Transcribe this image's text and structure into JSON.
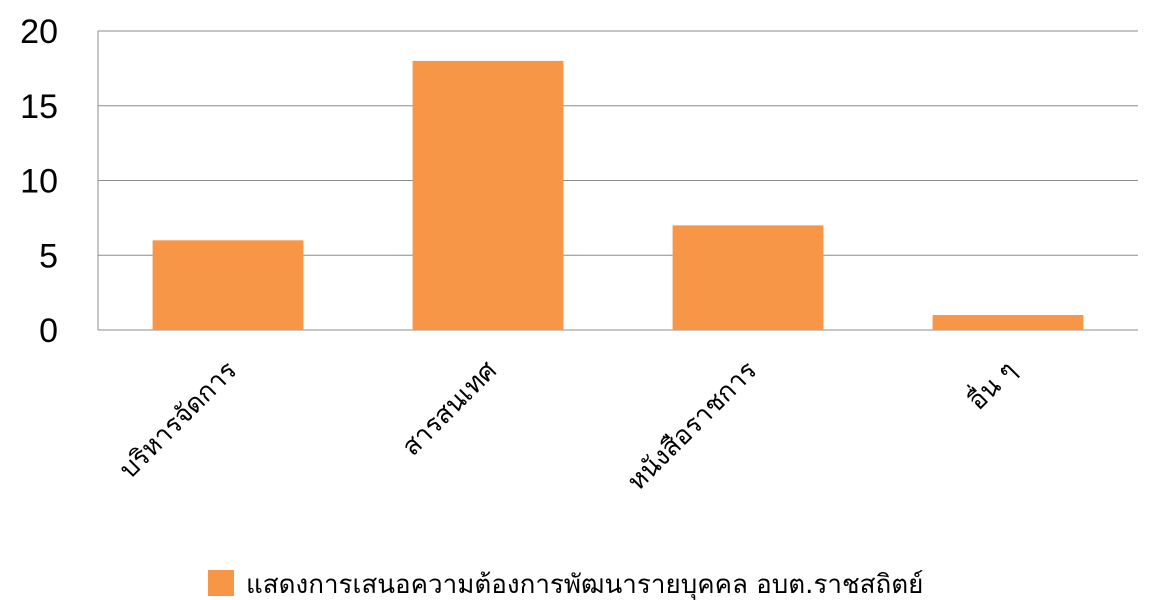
{
  "chart_data": {
    "type": "bar",
    "categories": [
      "บริหารจัดการ",
      "สารสนเทศ",
      "หนังสือราชการ",
      "อื่น ๆ"
    ],
    "series": [
      {
        "name": "แสดงการเสนอความต้องการพัฒนารายบุคคล อบต.ราชสถิตย์",
        "values": [
          6,
          18,
          7,
          1
        ],
        "color": "#F79646"
      }
    ],
    "yticks": [
      "0",
      "5",
      "10",
      "15",
      "20"
    ],
    "ylim": [
      0,
      20
    ],
    "grid": true,
    "legend_position": "bottom"
  }
}
